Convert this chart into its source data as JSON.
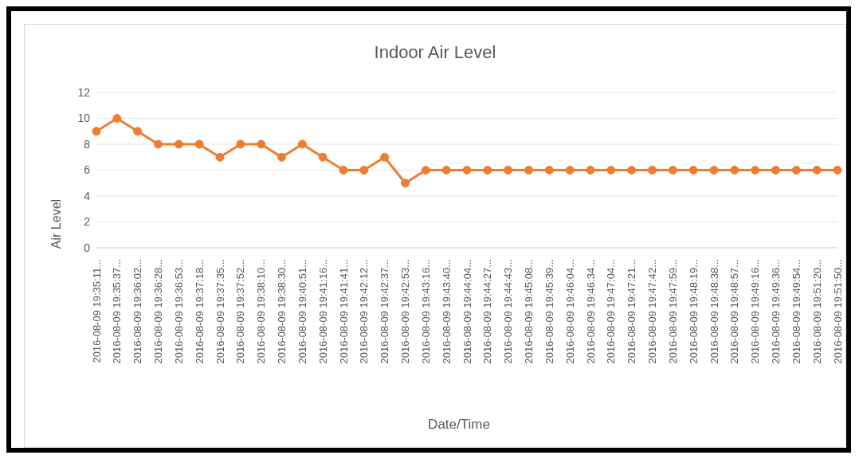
{
  "chart_data": {
    "type": "line",
    "title": "Indoor Air Level",
    "xlabel": "Date/Time",
    "ylabel": "Air Level",
    "categories": [
      "2016-08-09 19:35:11...",
      "2016-08-09 19:35:37...",
      "2016-08-09 19:36:02...",
      "2016-08-09 19:36:28...",
      "2016-08-09 19:36:53...",
      "2016-08-09 19:37:18...",
      "2016-08-09 19:37:35...",
      "2016-08-09 19:37:52...",
      "2016-08-09 19:38:10...",
      "2016-08-09 19:38:30...",
      "2016-08-09 19:40:51...",
      "2016-08-09 19:41:16...",
      "2016-08-09 19:41:41...",
      "2016-08-09 19:42:12...",
      "2016-08-09 19:42:37...",
      "2016-08-09 19:42:53...",
      "2016-08-09 19:43:16...",
      "2016-08-09 19:43:40...",
      "2016-08-09 19:44:04...",
      "2016-08-09 19:44:27...",
      "2016-08-09 19:44:43...",
      "2016-08-09 19:45:08...",
      "2016-08-09 19:45:39...",
      "2016-08-09 19:46:04...",
      "2016-08-09 19:46:34...",
      "2016-08-09 19:47:04...",
      "2016-08-09 19:47:21...",
      "2016-08-09 19:47:42...",
      "2016-08-09 19:47:59...",
      "2016-08-09 19:48:19...",
      "2016-08-09 19:48:38...",
      "2016-08-09 19:48:57...",
      "2016-08-09 19:49:16...",
      "2016-08-09 19:49:36...",
      "2016-08-09 19:49:54...",
      "2016-08-09 19:51:20...",
      "2016-08-09 19:51:50..."
    ],
    "series": [
      {
        "color": "#ed7d31",
        "values": [
          9,
          10,
          9,
          8,
          8,
          8,
          7,
          8,
          8,
          7,
          8,
          7,
          6,
          6,
          7,
          5,
          6,
          6,
          6,
          6,
          6,
          6,
          6,
          6,
          6,
          6,
          6,
          6,
          6,
          6,
          6,
          6,
          6,
          6,
          6,
          6,
          6
        ]
      }
    ],
    "ylim": [
      0,
      12
    ],
    "yticks": [
      0,
      2,
      4,
      6,
      8,
      10,
      12
    ],
    "grid": "y",
    "legend": false,
    "marker": "circle",
    "line_style": "solid"
  }
}
